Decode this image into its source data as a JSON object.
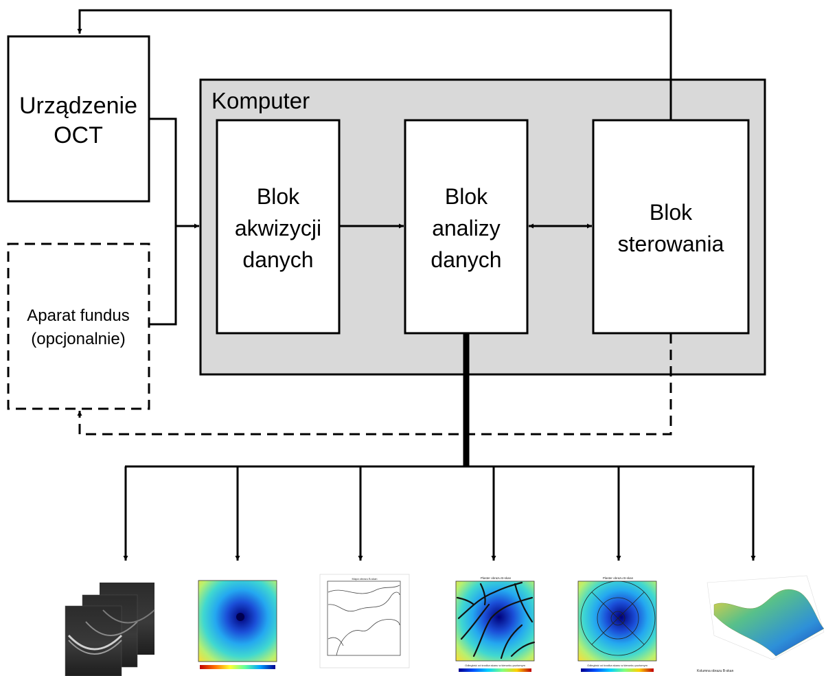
{
  "colors": {
    "computer_bg": "#d9d9d9",
    "line": "#000000",
    "box_fill": "#ffffff"
  },
  "oct_device": {
    "line1": "Urządzenie",
    "line2": "OCT"
  },
  "fundus": {
    "line1": "Aparat fundus",
    "line2": "(opcjonalnie)"
  },
  "computer": {
    "title": "Komputer"
  },
  "acquisition": {
    "line1": "Blok",
    "line2": "akwizycji",
    "line3": "danych"
  },
  "analysis": {
    "line1": "Blok",
    "line2": "analizy",
    "line3": "danych"
  },
  "control": {
    "line1": "Blok",
    "line2": "sterowania"
  },
  "outputs": {
    "map_title": "Plaster obrazu B-skan",
    "contour_title": "Mapa obrazu B-skan",
    "xlabel": "Odległość od środka skanu w kierunku poziomym",
    "surface_xlabel": "Kolumna obrazu B-skan"
  }
}
